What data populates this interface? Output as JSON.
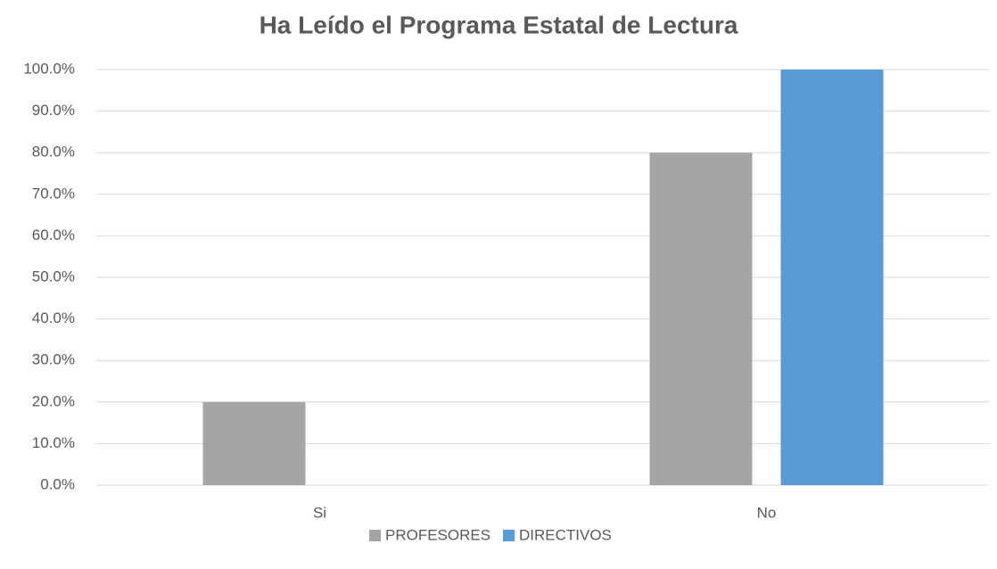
{
  "chart_data": {
    "type": "bar",
    "title": "Ha Leído el Programa Estatal de Lectura",
    "categories": [
      "Si",
      "No"
    ],
    "series": [
      {
        "name": "PROFESORES",
        "color": "#a5a5a5",
        "values": [
          20,
          80
        ]
      },
      {
        "name": "DIRECTIVOS",
        "color": "#5b9bd5",
        "values": [
          0,
          100
        ]
      }
    ],
    "ylim": [
      0,
      100
    ],
    "yticks": [
      {
        "value": 0,
        "label": "0.0%"
      },
      {
        "value": 10,
        "label": "10.0%"
      },
      {
        "value": 20,
        "label": "20.0%"
      },
      {
        "value": 30,
        "label": "30.0%"
      },
      {
        "value": 40,
        "label": "40.0%"
      },
      {
        "value": 50,
        "label": "50.0%"
      },
      {
        "value": 60,
        "label": "60.0%"
      },
      {
        "value": 70,
        "label": "70.0%"
      },
      {
        "value": 80,
        "label": "80.0%"
      },
      {
        "value": 90,
        "label": "90.0%"
      },
      {
        "value": 100,
        "label": "100.0%"
      }
    ],
    "grid": true,
    "legend": "bottom"
  }
}
